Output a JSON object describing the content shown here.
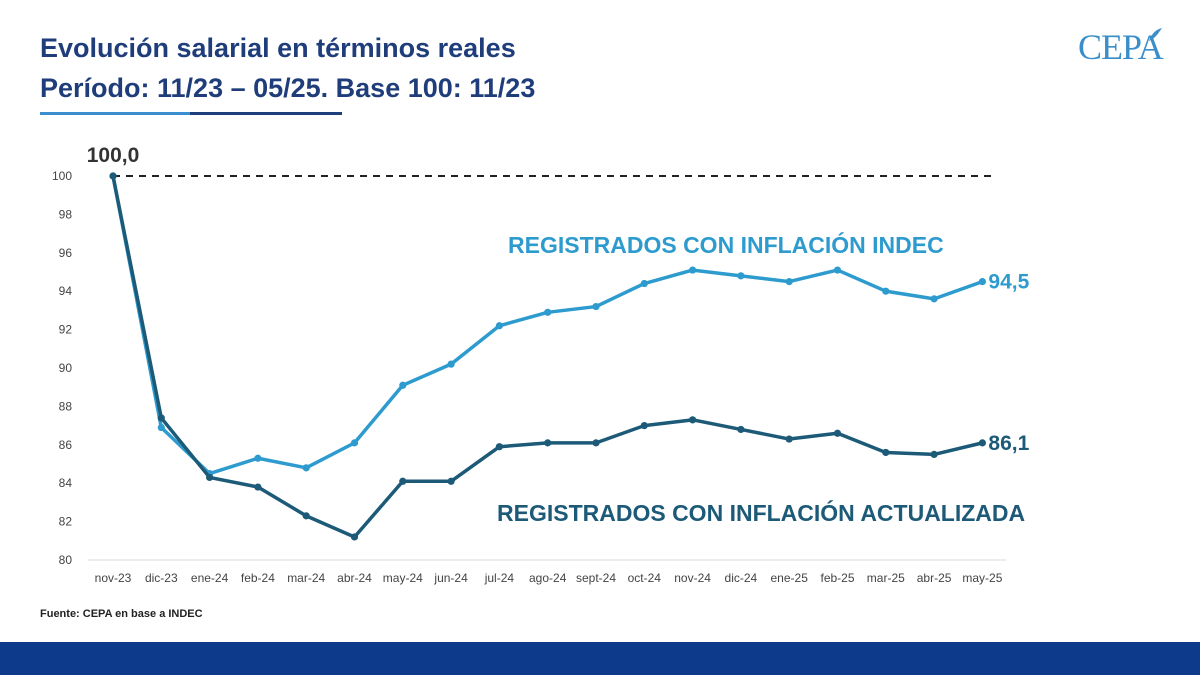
{
  "header": {
    "title_line1": "Evolución salarial en términos reales",
    "title_line2": "Período: 11/23 – 05/25. Base 100: 11/23",
    "logo_text": "CEPA"
  },
  "source": "Fuente: CEPA en base a INDEC",
  "colors": {
    "title": "#1f3d7a",
    "series_indec": "#2e9bcf",
    "series_actualizada": "#1c5a78",
    "footer_band": "#0d3a8a"
  },
  "chart_data": {
    "type": "line",
    "categories": [
      "nov-23",
      "dic-23",
      "ene-24",
      "feb-24",
      "mar-24",
      "abr-24",
      "may-24",
      "jun-24",
      "jul-24",
      "ago-24",
      "sept-24",
      "oct-24",
      "nov-24",
      "dic-24",
      "ene-25",
      "feb-25",
      "mar-25",
      "abr-25",
      "may-25"
    ],
    "series": [
      {
        "name": "REGISTRADOS CON INFLACIÓN INDEC",
        "values": [
          100.0,
          86.9,
          84.5,
          85.3,
          84.8,
          86.1,
          89.1,
          90.2,
          92.2,
          92.9,
          93.2,
          94.4,
          95.1,
          94.8,
          94.5,
          95.1,
          94.0,
          93.6,
          94.5
        ],
        "end_label": "94,5"
      },
      {
        "name": "REGISTRADOS CON INFLACIÓN ACTUALIZADA",
        "values": [
          100.0,
          87.4,
          84.3,
          83.8,
          82.3,
          81.2,
          84.1,
          84.1,
          85.9,
          86.1,
          86.1,
          87.0,
          87.3,
          86.8,
          86.3,
          86.6,
          85.6,
          85.5,
          86.1
        ],
        "end_label": "86,1"
      }
    ],
    "start_label": "100,0",
    "reference_line": 100,
    "ylim": [
      80,
      100
    ],
    "yticks": [
      80,
      82,
      84,
      86,
      88,
      90,
      92,
      94,
      96,
      98,
      100
    ],
    "grid": false,
    "legend": "inline-labels"
  }
}
